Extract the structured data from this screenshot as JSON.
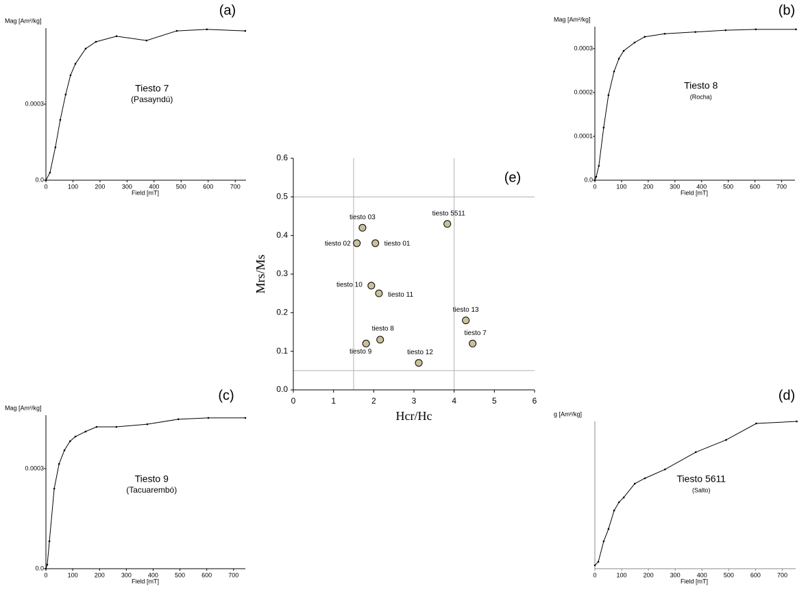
{
  "chart_data": [
    {
      "type": "line",
      "panel_label": "(a)",
      "title": "Tiesto 7",
      "subtitle": "(Pasayndú)",
      "x_label": "Field [mT]",
      "y_label": "Mag [Am²/kg]",
      "x": [
        0,
        15,
        35,
        53,
        73,
        91,
        109,
        147,
        185,
        261,
        372,
        484,
        595,
        737
      ],
      "values": [
        0,
        3e-05,
        0.00013,
        0.000238,
        0.000338,
        0.000414,
        0.000459,
        0.000519,
        0.000546,
        0.000568,
        0.000551,
        0.000589,
        0.000595,
        0.000589
      ],
      "color": "#000000",
      "xlim": [
        0,
        740
      ],
      "ylim": [
        0,
        0.0006
      ],
      "xticks": [
        0,
        100,
        200,
        300,
        400,
        500,
        600,
        700
      ],
      "yticks": [
        {
          "value": 0,
          "label": "0.0"
        },
        0.0003
      ]
    },
    {
      "type": "line",
      "panel_label": "(b)",
      "title": "Tiesto 8",
      "subtitle": "(Rocha)",
      "x_label": "Field [mT]",
      "y_label": "Mag [Am²/kg]",
      "x": [
        0,
        5,
        15,
        33,
        51,
        72,
        90,
        108,
        149,
        187,
        262,
        377,
        490,
        603,
        754
      ],
      "values": [
        0,
        7.8e-06,
        3.28e-05,
        0.00012,
        0.000194,
        0.000248,
        0.000277,
        0.000295,
        0.000314,
        0.000327,
        0.000334,
        0.000338,
        0.000342,
        0.000344,
        0.000344
      ],
      "color": "#000000",
      "xlim": [
        0,
        750
      ],
      "ylim": [
        0,
        0.00035
      ],
      "xticks": [
        0,
        100,
        200,
        300,
        400,
        500,
        600,
        700
      ],
      "yticks": [
        {
          "value": 0,
          "label": "0.0"
        },
        0.0001,
        0.0002,
        0.0003
      ]
    },
    {
      "type": "line",
      "panel_label": "(c)",
      "title": "Tiesto 9",
      "subtitle": "(Tacuarembó)",
      "x_label": "Field [mT]",
      "y_label": "Mag [Am²/kg]",
      "x": [
        0,
        5,
        13,
        31,
        49,
        69,
        90,
        110,
        148,
        189,
        263,
        378,
        494,
        606,
        744
      ],
      "values": [
        0,
        1.23e-05,
        8.22e-05,
        0.00024,
        0.000314,
        0.000355,
        0.000382,
        0.000396,
        0.000411,
        0.000425,
        0.000425,
        0.000433,
        0.000448,
        0.000452,
        0.000452
      ],
      "color": "#000000",
      "xlim": [
        0,
        744
      ],
      "ylim": [
        0,
        0.00046
      ],
      "xticks": [
        0,
        100,
        200,
        300,
        400,
        500,
        600,
        700
      ],
      "yticks": [
        {
          "value": 0,
          "label": "0.0"
        },
        0.0003
      ]
    },
    {
      "type": "line",
      "panel_label": "(d)",
      "title": "Tiesto 5611",
      "subtitle": "(Salto)",
      "x_label": "Field [mT]",
      "y_label": "g [Am²/kg]",
      "x": [
        0,
        13,
        33,
        51,
        72,
        90,
        108,
        149,
        187,
        262,
        377,
        490,
        603,
        754
      ],
      "values": [
        0.023,
        0.047,
        0.186,
        0.27,
        0.395,
        0.451,
        0.484,
        0.577,
        0.614,
        0.674,
        0.791,
        0.874,
        0.986,
        1.0
      ],
      "color": "#000000",
      "xlim": [
        0,
        750
      ],
      "ylim": [
        0,
        1
      ],
      "xticks": [
        0,
        100,
        200,
        300,
        400,
        500,
        600,
        700
      ]
    },
    {
      "type": "scatter",
      "panel_label": "(e)",
      "x_label": "Hcr/Hc",
      "y_label": "Mrs/Ms",
      "labels": [
        "tiesto 03",
        "tiesto 02",
        "tiesto 01",
        "tiesto 5511",
        "tiesto 10",
        "tiesto 11",
        "tiesto 13",
        "tiesto 7",
        "tiesto 8",
        "tiesto 9",
        "tiesto 12"
      ],
      "x": [
        1.72,
        1.58,
        2.04,
        3.83,
        1.94,
        2.13,
        4.29,
        4.46,
        2.16,
        1.81,
        3.12
      ],
      "y": [
        0.42,
        0.38,
        0.38,
        0.43,
        0.27,
        0.25,
        0.18,
        0.12,
        0.13,
        0.12,
        0.07
      ],
      "color": "#c9c09c",
      "line_color": "#b0b0b0",
      "hlines": [
        0.05,
        0.5
      ],
      "vlines": [
        1.5,
        4
      ],
      "xlim": [
        0,
        6
      ],
      "ylim": [
        0,
        0.6
      ],
      "xticks": [
        0,
        1,
        2,
        3,
        4,
        5,
        6
      ],
      "yticks": [
        {
          "value": 0,
          "label": "0.0"
        },
        0.1,
        0.2,
        0.3,
        0.4,
        0.5,
        0.6
      ]
    }
  ]
}
